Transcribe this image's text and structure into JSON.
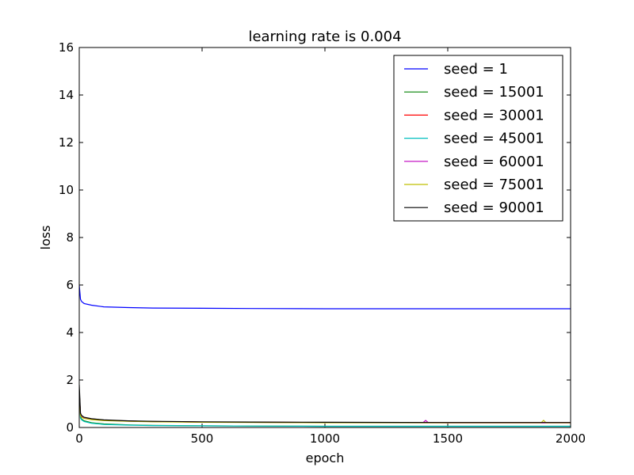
{
  "chart_data": {
    "type": "line",
    "title": "learning rate is  0.004",
    "xlabel": "epoch",
    "ylabel": "loss",
    "xlim": [
      0,
      2000
    ],
    "ylim": [
      0,
      16
    ],
    "xticks": [
      0,
      500,
      1000,
      1500,
      2000
    ],
    "yticks": [
      0,
      2,
      4,
      6,
      8,
      10,
      12,
      14,
      16
    ],
    "grid": false,
    "legend_position": "top-right",
    "series": [
      {
        "name": "seed = 1",
        "color": "#0000ff",
        "x": [
          0,
          5,
          10,
          20,
          50,
          100,
          200,
          300,
          500,
          700,
          1000,
          1500,
          2000
        ],
        "y": [
          6.0,
          5.4,
          5.3,
          5.22,
          5.15,
          5.08,
          5.05,
          5.03,
          5.02,
          5.01,
          5.0,
          5.0,
          5.0
        ]
      },
      {
        "name": "seed = 15001",
        "color": "#008000",
        "x": [
          0,
          5,
          10,
          20,
          50,
          100,
          200,
          300,
          500,
          700,
          1000,
          1500,
          2000
        ],
        "y": [
          1.6,
          0.45,
          0.35,
          0.28,
          0.2,
          0.15,
          0.11,
          0.09,
          0.07,
          0.06,
          0.05,
          0.05,
          0.05
        ]
      },
      {
        "name": "seed = 30001",
        "color": "#ff0000",
        "x": [
          0,
          5,
          10,
          20,
          50,
          100,
          200,
          300,
          500,
          700,
          1000,
          1500,
          2000
        ],
        "y": [
          1.5,
          0.55,
          0.48,
          0.42,
          0.36,
          0.31,
          0.27,
          0.25,
          0.23,
          0.22,
          0.21,
          0.2,
          0.2
        ]
      },
      {
        "name": "seed = 45001",
        "color": "#00bfbf",
        "x": [
          0,
          5,
          10,
          20,
          50,
          100,
          200,
          300,
          500,
          700,
          1000,
          1500,
          2000
        ],
        "y": [
          1.4,
          0.4,
          0.32,
          0.25,
          0.18,
          0.13,
          0.1,
          0.08,
          0.07,
          0.06,
          0.05,
          0.05,
          0.05
        ]
      },
      {
        "name": "seed = 60001",
        "color": "#bf00bf",
        "x": [
          0,
          5,
          10,
          20,
          50,
          100,
          200,
          300,
          500,
          700,
          1000,
          1400,
          1410,
          1420,
          1500,
          2000
        ],
        "y": [
          1.5,
          0.55,
          0.47,
          0.41,
          0.35,
          0.3,
          0.27,
          0.25,
          0.23,
          0.22,
          0.21,
          0.21,
          0.3,
          0.21,
          0.2,
          0.2
        ]
      },
      {
        "name": "seed = 75001",
        "color": "#bfbf00",
        "x": [
          0,
          5,
          10,
          20,
          50,
          100,
          200,
          300,
          500,
          700,
          1000,
          1500,
          1880,
          1890,
          1900,
          2000
        ],
        "y": [
          1.5,
          0.5,
          0.43,
          0.38,
          0.33,
          0.29,
          0.26,
          0.24,
          0.22,
          0.21,
          0.2,
          0.2,
          0.2,
          0.3,
          0.2,
          0.2
        ]
      },
      {
        "name": "seed = 90001",
        "color": "#000000",
        "x": [
          0,
          5,
          10,
          20,
          50,
          100,
          200,
          300,
          500,
          700,
          1000,
          1500,
          2000
        ],
        "y": [
          1.8,
          0.6,
          0.5,
          0.43,
          0.37,
          0.32,
          0.28,
          0.26,
          0.24,
          0.23,
          0.22,
          0.21,
          0.21
        ]
      }
    ]
  }
}
